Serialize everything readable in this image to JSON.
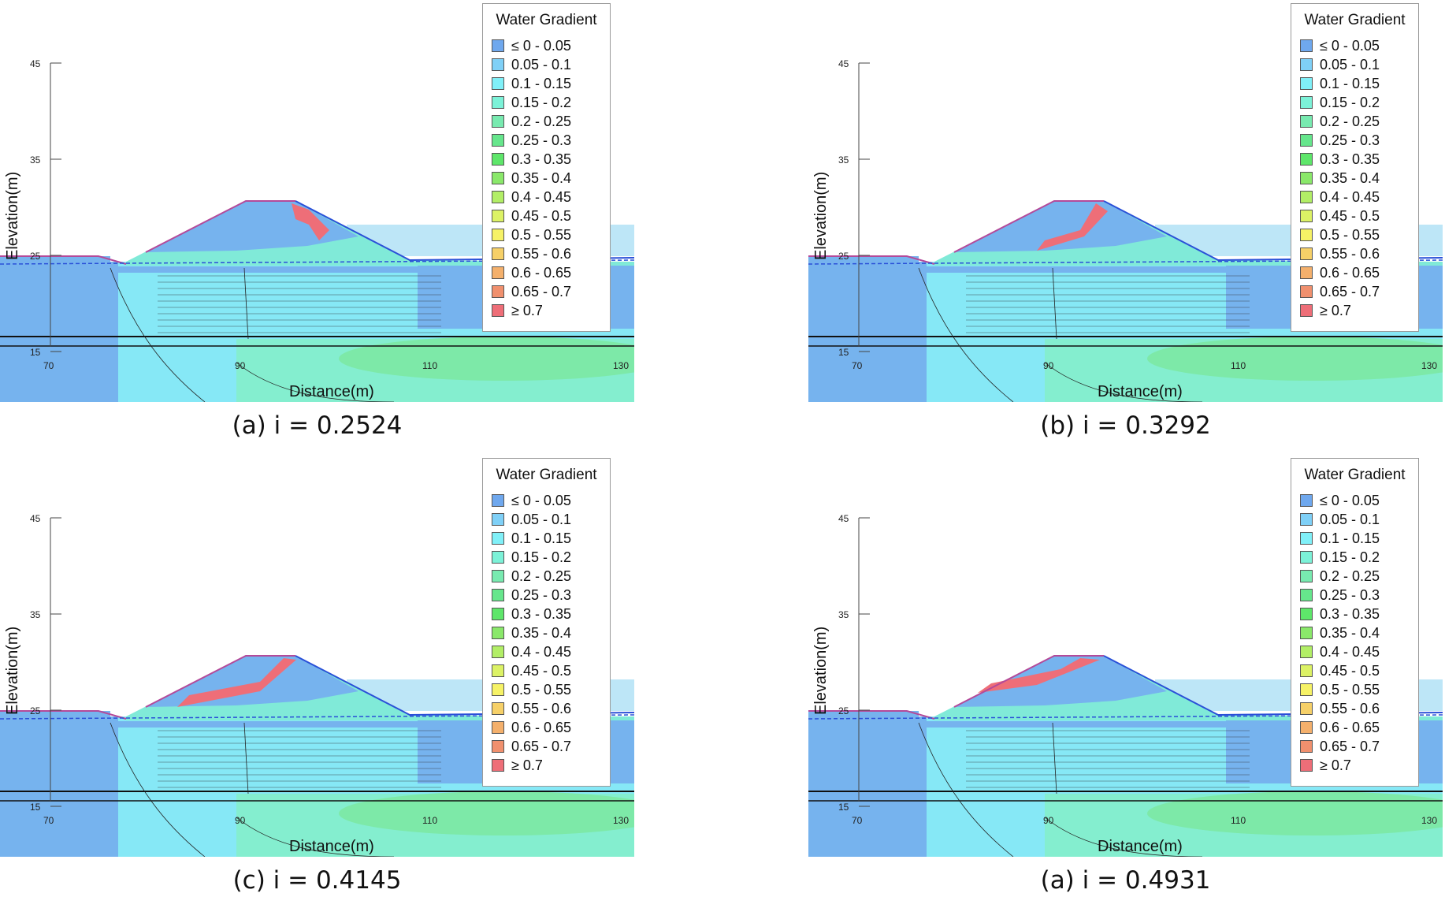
{
  "panels": [
    {
      "caption": "(a) i = 0.2524"
    },
    {
      "caption": "(b) i = 0.3292"
    },
    {
      "caption": "(c) i = 0.4145"
    },
    {
      "caption": "(a) i = 0.4931"
    }
  ],
  "axes": {
    "xlabel": "Distance(m)",
    "ylabel": "Elevation(m)",
    "x_ticks": [
      "70",
      "90",
      "110",
      "130"
    ],
    "y_ticks": [
      "45",
      "35",
      "25",
      "15"
    ]
  },
  "legend": {
    "title": "Water Gradient",
    "items": [
      {
        "label": "≤ 0 - 0.05",
        "color": "#6fa8ee"
      },
      {
        "label": "0.05 - 0.1",
        "color": "#7fd0f7"
      },
      {
        "label": "0.1 - 0.15",
        "color": "#80f0f8"
      },
      {
        "label": "0.15 - 0.2",
        "color": "#7cf2d8"
      },
      {
        "label": "0.2 - 0.25",
        "color": "#78eab0"
      },
      {
        "label": "0.25 - 0.3",
        "color": "#66e68c"
      },
      {
        "label": "0.3 - 0.35",
        "color": "#5ee66a"
      },
      {
        "label": "0.35 - 0.4",
        "color": "#8ae86a"
      },
      {
        "label": "0.4 - 0.45",
        "color": "#b2ee66"
      },
      {
        "label": "0.45 - 0.5",
        "color": "#dcf265"
      },
      {
        "label": "0.5 - 0.55",
        "color": "#f6f266"
      },
      {
        "label": "0.55 - 0.6",
        "color": "#f6d068"
      },
      {
        "label": "0.6 - 0.65",
        "color": "#f4b06c"
      },
      {
        "label": "0.65 - 0.7",
        "color": "#f0906e"
      },
      {
        "label": "≥ 0.7",
        "color": "#ee6e78"
      }
    ]
  }
}
